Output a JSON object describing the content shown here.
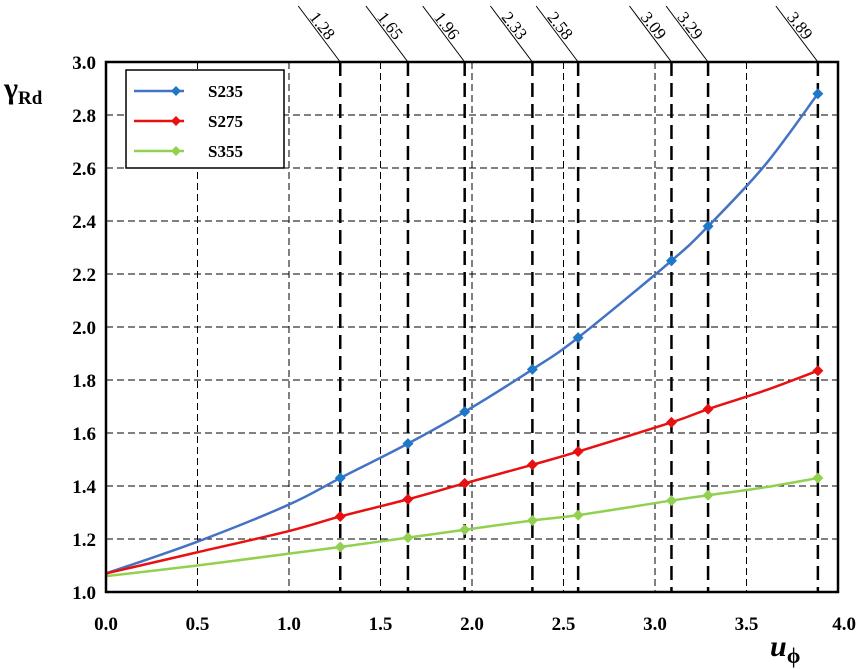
{
  "chart_data": {
    "type": "line",
    "title": "",
    "xlabel": "u",
    "xlabel_sub": "ϕ",
    "ylabel": "γ",
    "ylabel_sub": "Rd",
    "xlim": [
      0.0,
      4.0
    ],
    "ylim": [
      1.0,
      3.0
    ],
    "x_ticks": [
      "0.0",
      "0.5",
      "1.0",
      "1.5",
      "2.0",
      "2.5",
      "3.0",
      "3.5",
      "4.0"
    ],
    "y_ticks": [
      "1.0",
      "1.2",
      "1.4",
      "1.6",
      "1.8",
      "2.0",
      "2.2",
      "2.4",
      "2.6",
      "2.8",
      "3.0"
    ],
    "grid": true,
    "legend_position": "top-left",
    "reference_lines": [
      {
        "x": 1.28,
        "label": "1.28"
      },
      {
        "x": 1.65,
        "label": "1.65"
      },
      {
        "x": 1.96,
        "label": "1.96"
      },
      {
        "x": 2.33,
        "label": "2.33"
      },
      {
        "x": 2.58,
        "label": "2.58"
      },
      {
        "x": 3.09,
        "label": "3.09"
      },
      {
        "x": 3.29,
        "label": "3.29"
      },
      {
        "x": 3.89,
        "label": "3.89"
      }
    ],
    "curve_x": [
      0.0,
      0.5,
      1.0,
      1.28,
      1.65,
      1.96,
      2.33,
      2.58,
      3.09,
      3.29,
      3.6,
      3.89
    ],
    "marker_x": [
      1.28,
      1.65,
      1.96,
      2.33,
      2.58,
      3.09,
      3.29,
      3.89
    ],
    "series": [
      {
        "name": "S235",
        "color": "#4472C4",
        "marker_color": "#1F77C8",
        "curve_y": [
          1.07,
          1.19,
          1.33,
          1.43,
          1.56,
          1.68,
          1.84,
          1.96,
          2.25,
          2.38,
          2.61,
          2.88
        ]
      },
      {
        "name": "S275",
        "color": "#E81010",
        "marker_color": "#E81010",
        "curve_y": [
          1.07,
          1.15,
          1.23,
          1.285,
          1.35,
          1.41,
          1.48,
          1.53,
          1.64,
          1.69,
          1.76,
          1.835
        ]
      },
      {
        "name": "S355",
        "color": "#92D050",
        "marker_color": "#92D050",
        "curve_y": [
          1.06,
          1.1,
          1.145,
          1.17,
          1.205,
          1.235,
          1.27,
          1.29,
          1.345,
          1.365,
          1.395,
          1.43
        ]
      }
    ]
  }
}
